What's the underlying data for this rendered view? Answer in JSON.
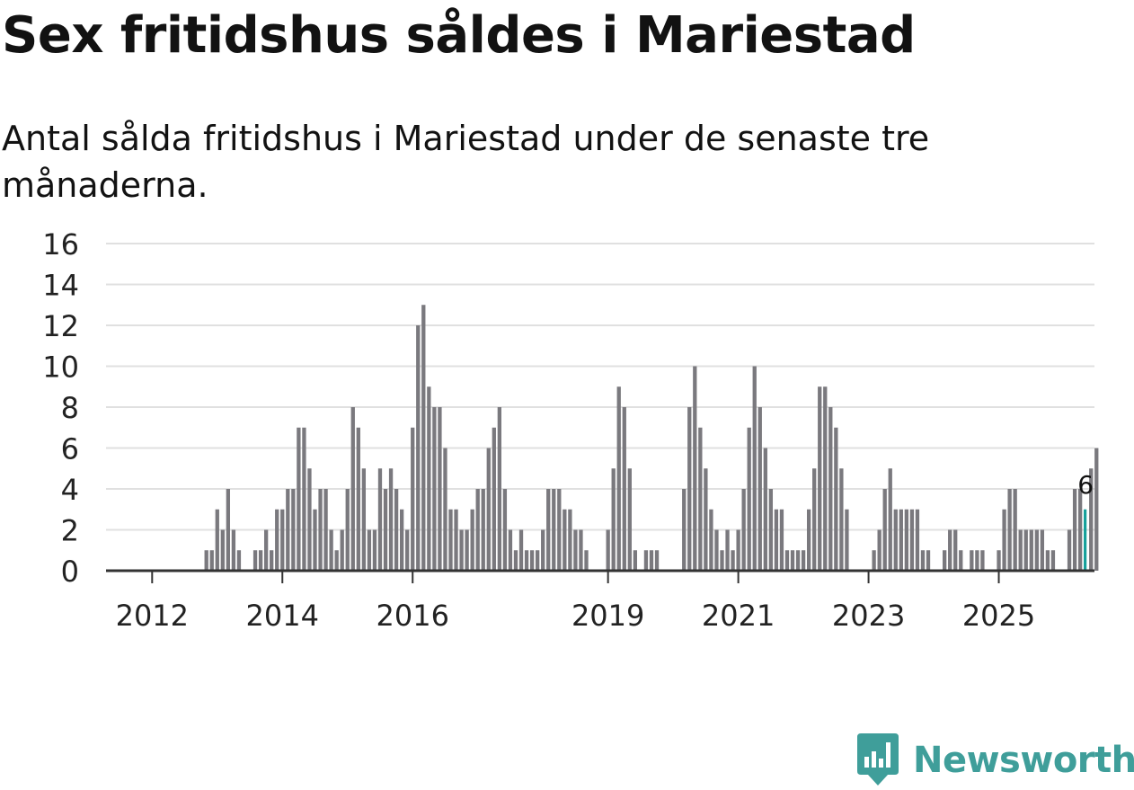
{
  "title": "Sex fritidshus såldes i Mariestad",
  "subtitle": "Antal sålda fritidshus i Mariestad under de senaste tre månaderna.",
  "logo": {
    "text": "Newsworthy",
    "icon": "newsworthy-logo-icon"
  },
  "colors": {
    "bar": "#7a797e",
    "highlight": "#14a09a",
    "grid": "#e0e0e0",
    "axis": "#333333",
    "text": "#222222"
  },
  "chart_data": {
    "type": "bar",
    "title": "Sex fritidshus såldes i Mariestad",
    "xlabel": "",
    "ylabel": "",
    "ylim": [
      0,
      16
    ],
    "yticks": [
      0,
      2,
      4,
      6,
      8,
      10,
      12,
      14,
      16
    ],
    "xticks": [
      {
        "label": "2012",
        "month": 12
      },
      {
        "label": "2014",
        "month": 36
      },
      {
        "label": "2016",
        "month": 60
      },
      {
        "label": "2019",
        "month": 96
      },
      {
        "label": "2021",
        "month": 120
      },
      {
        "label": "2023",
        "month": 144
      },
      {
        "label": "2025",
        "month": 168
      }
    ],
    "x_start_label": "2011-01",
    "x_end_month": 184,
    "start_month": 0,
    "values": [
      null,
      null,
      null,
      null,
      null,
      null,
      null,
      null,
      null,
      null,
      null,
      null,
      null,
      null,
      null,
      null,
      null,
      null,
      null,
      null,
      null,
      null,
      1,
      1,
      3,
      2,
      4,
      2,
      1,
      null,
      null,
      1,
      1,
      2,
      1,
      3,
      3,
      4,
      4,
      7,
      7,
      5,
      3,
      4,
      4,
      2,
      1,
      2,
      4,
      8,
      7,
      5,
      2,
      2,
      5,
      4,
      5,
      4,
      3,
      2,
      7,
      12,
      13,
      9,
      8,
      8,
      6,
      3,
      3,
      2,
      2,
      3,
      4,
      4,
      6,
      7,
      8,
      4,
      2,
      1,
      2,
      1,
      1,
      1,
      2,
      4,
      4,
      4,
      3,
      3,
      2,
      2,
      1,
      null,
      null,
      null,
      2,
      5,
      9,
      8,
      5,
      1,
      null,
      1,
      1,
      1,
      null,
      null,
      null,
      null,
      4,
      8,
      10,
      7,
      5,
      3,
      2,
      1,
      2,
      1,
      2,
      4,
      7,
      10,
      8,
      6,
      4,
      3,
      3,
      1,
      1,
      1,
      1,
      3,
      5,
      9,
      9,
      8,
      7,
      5,
      3,
      null,
      null,
      null,
      null,
      1,
      2,
      4,
      5,
      3,
      3,
      3,
      3,
      3,
      1,
      1,
      null,
      null,
      1,
      2,
      2,
      1,
      null,
      1,
      1,
      1,
      null,
      null,
      1,
      3,
      4,
      4,
      2,
      2,
      2,
      2,
      2,
      1,
      1,
      null,
      null,
      2,
      4,
      4,
      3,
      5,
      6
    ],
    "highlight_index": 184,
    "highlight_label": "6",
    "series": [
      {
        "name": "Antal sålda fritidshus",
        "note": "senaste tre månaderna"
      }
    ]
  }
}
